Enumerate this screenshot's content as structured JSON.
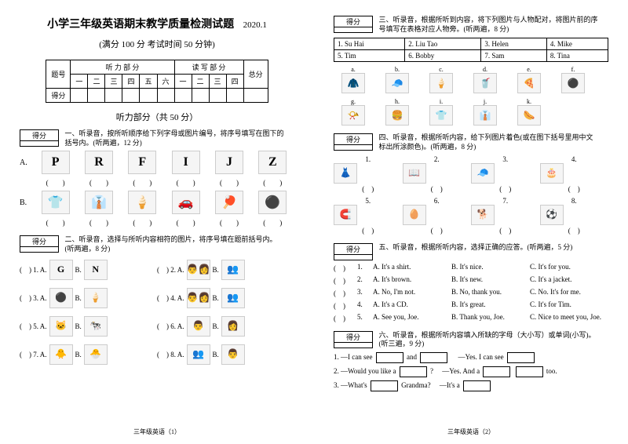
{
  "header": {
    "title": "小学三年级英语期末教学质量检测试题",
    "date": "2020.1",
    "subtitle": "(满分 100 分  考试时间 50 分钟)"
  },
  "score_grid": {
    "row1": "题号",
    "row2": "得分",
    "listening": "听 力 部 分",
    "written": "读 写 部 分",
    "total": "总分",
    "cols_l": [
      "一",
      "二",
      "三",
      "四",
      "五",
      "六"
    ],
    "cols_w": [
      "一",
      "二",
      "三",
      "四"
    ]
  },
  "listening_title": "听力部分（共 50 分）",
  "score_label": "得分",
  "q1": {
    "instr": "一、听录音，按所听顺序给下列字母或图片编号，将序号填写在图下的括号内。(听两遍，12 分)",
    "rowA_label": "A.",
    "rowA_items": [
      "P",
      "R",
      "F",
      "I",
      "J",
      "Z"
    ],
    "rowB_label": "B.",
    "rowB_items": [
      "👕",
      "👔",
      "🍦",
      "🚗",
      "🏓",
      "⚫"
    ],
    "paren": "(　　)"
  },
  "q2": {
    "instr": "二、听录音，选择与所听内容相符的图片，将序号填在题前括号内。(听两遍，8 分)",
    "items": [
      {
        "n": "1.",
        "a": "G",
        "b": "N"
      },
      {
        "n": "2.",
        "a": "👨‍👩",
        "b": "👥"
      },
      {
        "n": "3.",
        "a": "⚫",
        "b": "🍦"
      },
      {
        "n": "4.",
        "a": "👨‍👩",
        "b": "👥"
      },
      {
        "n": "5.",
        "a": "🐱",
        "b": "🐄"
      },
      {
        "n": "6.",
        "a": "👨",
        "b": "👩"
      },
      {
        "n": "7.",
        "a": "🐥",
        "b": "🐣"
      },
      {
        "n": "8.",
        "a": "👥",
        "b": "👨"
      }
    ]
  },
  "q3": {
    "instr": "三、听录音，根据所听到内容，将下列图片与人物配对，将图片前的序号填写在表格对应人物旁。(听两遍，8 分)",
    "names": [
      [
        "1. Su Hai",
        "2. Liu Tao",
        "3. Helen",
        "4. Mike"
      ],
      [
        "5. Tim",
        "6. Bobby",
        "7. Sam",
        "8. Tina"
      ]
    ],
    "icons": [
      "a.",
      "b.",
      "c.",
      "d.",
      "e.",
      "f.",
      "g.",
      "h.",
      "i.",
      "j.",
      "k."
    ],
    "icon_glyphs": [
      "🧥",
      "🧢",
      "🍦",
      "🥤",
      "🍕",
      "⚫",
      "📯",
      "🍔",
      "👕",
      "👔",
      "🌭"
    ]
  },
  "q4": {
    "instr": "四、听录音，根据所听内容，给下列图片着色(或在图下括号里用中文标出所涂颜色)。(听两遍，8 分)",
    "items1": [
      "1.",
      "2.",
      "3.",
      "4."
    ],
    "glyphs1": [
      "👗",
      "📖",
      "🧢",
      "🎂"
    ],
    "items2": [
      "5.",
      "6.",
      "7.",
      "8."
    ],
    "glyphs2": [
      "🧲",
      "🥚",
      "🐕",
      "⚽"
    ]
  },
  "q5": {
    "instr": "五、听录音，根据所听内容，选择正确的应答。(听两遍，5 分)",
    "rows": [
      {
        "n": "1.",
        "a": "A. It's a shirt.",
        "b": "B. It's nice.",
        "c": "C. It's for you."
      },
      {
        "n": "2.",
        "a": "A. It's brown.",
        "b": "B. It's new.",
        "c": "C. It's a jacket."
      },
      {
        "n": "3.",
        "a": "A. No, I'm not.",
        "b": "B. No, thank you.",
        "c": "C. No. It's for me."
      },
      {
        "n": "4.",
        "a": "A. It's a CD.",
        "b": "B. It's great.",
        "c": "C. It's for Tim."
      },
      {
        "n": "5.",
        "a": "A. See you, Joe.",
        "b": "B. Thank you, Joe.",
        "c": "C. Nice to meet you, Joe."
      }
    ]
  },
  "q6": {
    "instr": "六、听录音，根据所听内容填入所缺的字母（大小写）或单词(小写)。(听三遍，9 分)",
    "r1a": "1. —I can see",
    "r1b": "and",
    "r1c": "—Yes. I can see",
    "r2a": "2. —Would you like a",
    "r2b": "?",
    "r2c": "—Yes. And a",
    "r2d": "too.",
    "r3a": "3. —What's",
    "r3b": "Grandma?",
    "r3c": "—It's a"
  },
  "footer1": "三年级英语（1）",
  "footer2": "三年级英语（2）"
}
